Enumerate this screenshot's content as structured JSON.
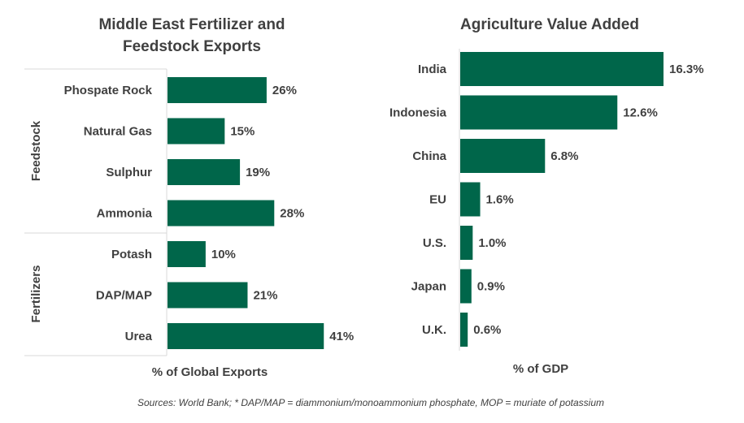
{
  "chart_data": [
    {
      "type": "bar",
      "orientation": "horizontal",
      "title": "Middle East Fertilizer and Feedstock Exports",
      "title_lines": [
        "Middle East Fertilizer and",
        "Feedstock Exports"
      ],
      "xlabel": "% of Global Exports",
      "groups": [
        {
          "name": "Feedstock",
          "categories": [
            "Phospate Rock",
            "Natural Gas",
            "Sulphur",
            "Ammonia"
          ]
        },
        {
          "name": "Fertilizers",
          "categories": [
            "Potash",
            "DAP/MAP",
            "Urea"
          ]
        }
      ],
      "categories": [
        "Phospate Rock",
        "Natural Gas",
        "Sulphur",
        "Ammonia",
        "Potash",
        "DAP/MAP",
        "Urea"
      ],
      "values": [
        26,
        15,
        19,
        28,
        10,
        21,
        41
      ],
      "value_labels": [
        "26%",
        "15%",
        "19%",
        "28%",
        "10%",
        "21%",
        "41%"
      ],
      "unit": "%",
      "xlim": [
        0,
        45
      ],
      "grid": false,
      "bar_color": "#00664a"
    },
    {
      "type": "bar",
      "orientation": "horizontal",
      "title": "Agriculture Value Added",
      "xlabel": "% of GDP",
      "categories": [
        "India",
        "Indonesia",
        "China",
        "EU",
        "U.S.",
        "Japan",
        "U.K."
      ],
      "values": [
        16.3,
        12.6,
        6.8,
        1.6,
        1.0,
        0.9,
        0.6
      ],
      "value_labels": [
        "16.3%",
        "12.6%",
        "6.8%",
        "1.6%",
        "1.0%",
        "0.9%",
        "0.6%"
      ],
      "unit": "%",
      "xlim": [
        0,
        16.3
      ],
      "grid": false,
      "bar_color": "#00664a"
    }
  ],
  "footer": {
    "source": "Sources: World Bank; * DAP/MAP = diammonium/monoammonium phosphate,  MOP = muriate of potassium"
  }
}
